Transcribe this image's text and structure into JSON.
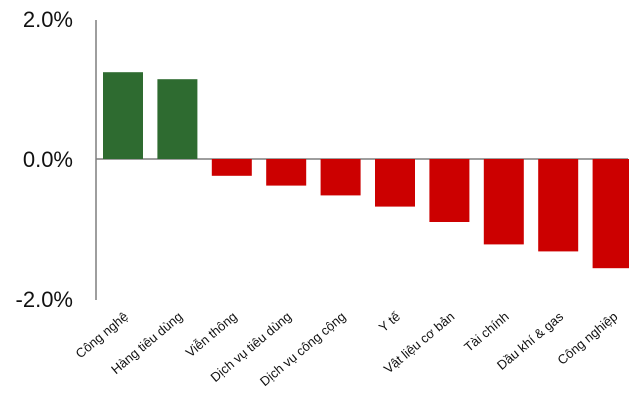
{
  "chart_data": {
    "type": "bar",
    "categories": [
      "Công nghệ",
      "Hàng tiêu dùng",
      "Viễn thông",
      "Dịch vụ tiêu dùng",
      "Dịch vụ công cộng",
      "Y tế",
      "Vật liệu cơ bản",
      "Tài chính",
      "Dầu khí & gas",
      "Công nghiệp"
    ],
    "values": [
      1.24,
      1.14,
      -0.24,
      -0.38,
      -0.52,
      -0.68,
      -0.9,
      -1.22,
      -1.32,
      -1.56
    ],
    "yticks": [
      "2.0%",
      "0.0%",
      "-2.0%"
    ],
    "ytick_values": [
      2.0,
      0.0,
      -2.0
    ],
    "ylim": [
      -2.0,
      2.0
    ],
    "title": "",
    "xlabel": "",
    "ylabel": "",
    "grid": false,
    "colors": {
      "positive": "#2e6b30",
      "negative": "#cc0000",
      "axis": "#7f7f7f"
    }
  }
}
